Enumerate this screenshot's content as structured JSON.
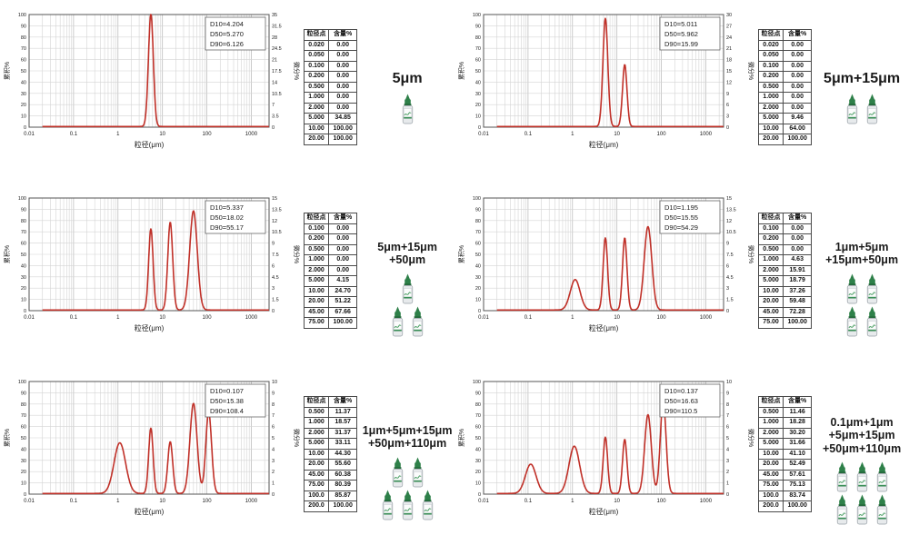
{
  "page_title": "Particle size distribution panels",
  "colors": {
    "curve": "#c03028",
    "grid_minor": "#d4d4d4",
    "grid_major": "#bdbdbd",
    "plot_border": "#555555",
    "text": "#1a1a1a",
    "bottle_cap_green": "#2e8049",
    "bottle_band_green": "#3b8f57"
  },
  "axes_common": {
    "x_label": "粒径(μm)",
    "x_scale": "log",
    "x_min": 0.01,
    "x_max": 2500,
    "x_tick_labels": [
      "0.01",
      "0.1",
      "1",
      "10",
      "100",
      "1000"
    ],
    "y_left_label": "累积%",
    "y_left_min": 0,
    "y_left_max": 100,
    "y_left_step": 10,
    "y_right_label": "微分%"
  },
  "table_headers": [
    "粒径点",
    "含量%"
  ],
  "chart_data": [
    {
      "type": "line",
      "sample_label_lines": [
        "5μm"
      ],
      "bottle_rows": [
        1
      ],
      "dbox": [
        "D10=4.204",
        "D50=5.270",
        "D90=6.126"
      ],
      "y_right": {
        "max": 35,
        "step": 3.5
      },
      "peaks_um": [
        {
          "center": 5.5,
          "height_pct": 100,
          "sigma_log10": 0.055
        }
      ],
      "table": {
        "headers": [
          "粒径点",
          "含量%"
        ],
        "rows": [
          [
            "0.020",
            "0.00"
          ],
          [
            "0.050",
            "0.00"
          ],
          [
            "0.100",
            "0.00"
          ],
          [
            "0.200",
            "0.00"
          ],
          [
            "0.500",
            "0.00"
          ],
          [
            "1.000",
            "0.00"
          ],
          [
            "2.000",
            "0.00"
          ],
          [
            "5.000",
            "34.85"
          ],
          [
            "10.00",
            "100.00"
          ],
          [
            "20.00",
            "100.00"
          ]
        ]
      }
    },
    {
      "type": "line",
      "sample_label_lines": [
        "5μm+15μm"
      ],
      "bottle_rows": [
        2
      ],
      "dbox": [
        "D10=5.011",
        "D50=5.962",
        "D90=15.99"
      ],
      "y_right": {
        "max": 30,
        "step": 3
      },
      "peaks_um": [
        {
          "center": 5.5,
          "height_pct": 96,
          "sigma_log10": 0.055
        },
        {
          "center": 15,
          "height_pct": 55,
          "sigma_log10": 0.05
        }
      ],
      "table": {
        "headers": [
          "粒径点",
          "含量%"
        ],
        "rows": [
          [
            "0.020",
            "0.00"
          ],
          [
            "0.050",
            "0.00"
          ],
          [
            "0.100",
            "0.00"
          ],
          [
            "0.200",
            "0.00"
          ],
          [
            "0.500",
            "0.00"
          ],
          [
            "1.000",
            "0.00"
          ],
          [
            "2.000",
            "0.00"
          ],
          [
            "5.000",
            "9.46"
          ],
          [
            "10.00",
            "64.00"
          ],
          [
            "20.00",
            "100.00"
          ]
        ]
      }
    },
    {
      "type": "line",
      "sample_label_lines": [
        "5μm+15μm",
        "+50μm"
      ],
      "bottle_rows": [
        1,
        2
      ],
      "dbox": [
        "D10=5.337",
        "D50=18.02",
        "D90=55.17"
      ],
      "y_right": {
        "max": 15,
        "step": 1.5
      },
      "peaks_um": [
        {
          "center": 5.5,
          "height_pct": 72,
          "sigma_log10": 0.05
        },
        {
          "center": 15,
          "height_pct": 78,
          "sigma_log10": 0.055
        },
        {
          "center": 50,
          "height_pct": 88,
          "sigma_log10": 0.085
        }
      ],
      "table": {
        "headers": [
          "粒径点",
          "含量%"
        ],
        "rows": [
          [
            "0.100",
            "0.00"
          ],
          [
            "0.200",
            "0.00"
          ],
          [
            "0.500",
            "0.00"
          ],
          [
            "1.000",
            "0.00"
          ],
          [
            "2.000",
            "0.00"
          ],
          [
            "5.000",
            "4.15"
          ],
          [
            "10.00",
            "24.70"
          ],
          [
            "20.00",
            "51.22"
          ],
          [
            "45.00",
            "67.66"
          ],
          [
            "75.00",
            "100.00"
          ]
        ]
      }
    },
    {
      "type": "line",
      "sample_label_lines": [
        "1μm+5μm",
        "+15μm+50μm"
      ],
      "bottle_rows": [
        2,
        2
      ],
      "dbox": [
        "D10=1.195",
        "D50=15.55",
        "D90=54.29"
      ],
      "y_right": {
        "max": 15,
        "step": 1.5
      },
      "peaks_um": [
        {
          "center": 1.15,
          "height_pct": 27,
          "sigma_log10": 0.11
        },
        {
          "center": 5.5,
          "height_pct": 64,
          "sigma_log10": 0.05
        },
        {
          "center": 15,
          "height_pct": 64,
          "sigma_log10": 0.05
        },
        {
          "center": 50,
          "height_pct": 74,
          "sigma_log10": 0.085
        }
      ],
      "table": {
        "headers": [
          "粒径点",
          "含量%"
        ],
        "rows": [
          [
            "0.100",
            "0.00"
          ],
          [
            "0.200",
            "0.00"
          ],
          [
            "0.500",
            "0.00"
          ],
          [
            "1.000",
            "4.63"
          ],
          [
            "2.000",
            "15.91"
          ],
          [
            "5.000",
            "18.79"
          ],
          [
            "10.00",
            "37.26"
          ],
          [
            "20.00",
            "59.48"
          ],
          [
            "45.00",
            "72.28"
          ],
          [
            "75.00",
            "100.00"
          ]
        ]
      }
    },
    {
      "type": "line",
      "sample_label_lines": [
        "1μm+5μm+15μm",
        "+50μm+110μm"
      ],
      "bottle_rows": [
        2,
        3
      ],
      "dbox": [
        "D10=0.107",
        "D50=15.38",
        "D90=108.4"
      ],
      "y_right": {
        "max": 10,
        "step": 1
      },
      "peaks_um": [
        {
          "center": 1.1,
          "height_pct": 45,
          "sigma_log10": 0.13
        },
        {
          "center": 5.5,
          "height_pct": 58,
          "sigma_log10": 0.05
        },
        {
          "center": 15,
          "height_pct": 46,
          "sigma_log10": 0.055
        },
        {
          "center": 50,
          "height_pct": 80,
          "sigma_log10": 0.08
        },
        {
          "center": 110,
          "height_pct": 72,
          "sigma_log10": 0.065
        }
      ],
      "table": {
        "headers": [
          "粒径点",
          "含量%"
        ],
        "rows": [
          [
            "0.500",
            "11.37"
          ],
          [
            "1.000",
            "18.57"
          ],
          [
            "2.000",
            "31.37"
          ],
          [
            "5.000",
            "33.11"
          ],
          [
            "10.00",
            "44.30"
          ],
          [
            "20.00",
            "55.60"
          ],
          [
            "45.00",
            "60.38"
          ],
          [
            "75.00",
            "80.39"
          ],
          [
            "100.0",
            "85.87"
          ],
          [
            "200.0",
            "100.00"
          ]
        ]
      }
    },
    {
      "type": "line",
      "sample_label_lines": [
        "0.1μm+1μm",
        "+5μm+15μm",
        "+50μm+110μm"
      ],
      "bottle_rows": [
        3,
        3
      ],
      "dbox": [
        "D10=0.137",
        "D50=16.63",
        "D90=110.5"
      ],
      "y_right": {
        "max": 10,
        "step": 1
      },
      "peaks_um": [
        {
          "center": 0.115,
          "height_pct": 26,
          "sigma_log10": 0.12
        },
        {
          "center": 1.1,
          "height_pct": 42,
          "sigma_log10": 0.12
        },
        {
          "center": 5.5,
          "height_pct": 50,
          "sigma_log10": 0.05
        },
        {
          "center": 15,
          "height_pct": 48,
          "sigma_log10": 0.05
        },
        {
          "center": 50,
          "height_pct": 70,
          "sigma_log10": 0.075
        },
        {
          "center": 110,
          "height_pct": 82,
          "sigma_log10": 0.065
        }
      ],
      "table": {
        "headers": [
          "粒径点",
          "含量%"
        ],
        "rows": [
          [
            "0.500",
            "11.46"
          ],
          [
            "1.000",
            "18.28"
          ],
          [
            "2.000",
            "30.20"
          ],
          [
            "5.000",
            "31.66"
          ],
          [
            "10.00",
            "41.10"
          ],
          [
            "20.00",
            "52.49"
          ],
          [
            "45.00",
            "57.61"
          ],
          [
            "75.00",
            "75.13"
          ],
          [
            "100.0",
            "83.74"
          ],
          [
            "200.0",
            "100.00"
          ]
        ]
      }
    }
  ]
}
